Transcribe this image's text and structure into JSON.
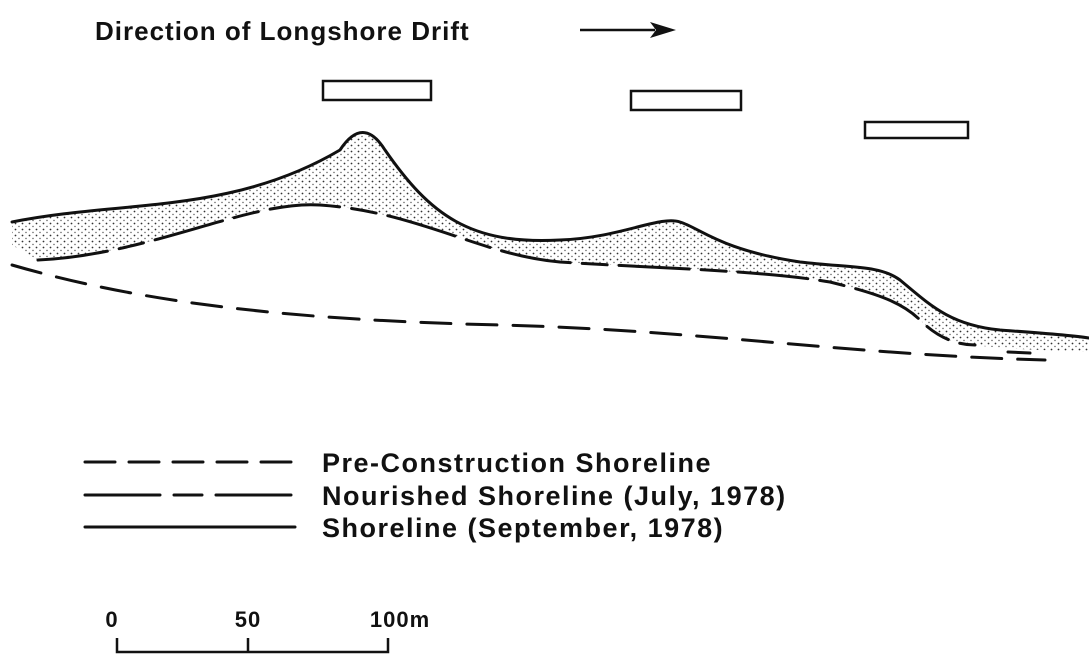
{
  "title": "Direction of Longshore Drift",
  "legend": [
    "Pre-Construction Shoreline",
    "Nourished Shoreline (July, 1978)",
    "Shoreline (September, 1978)"
  ],
  "scale": [
    "0",
    "50",
    "100m"
  ]
}
